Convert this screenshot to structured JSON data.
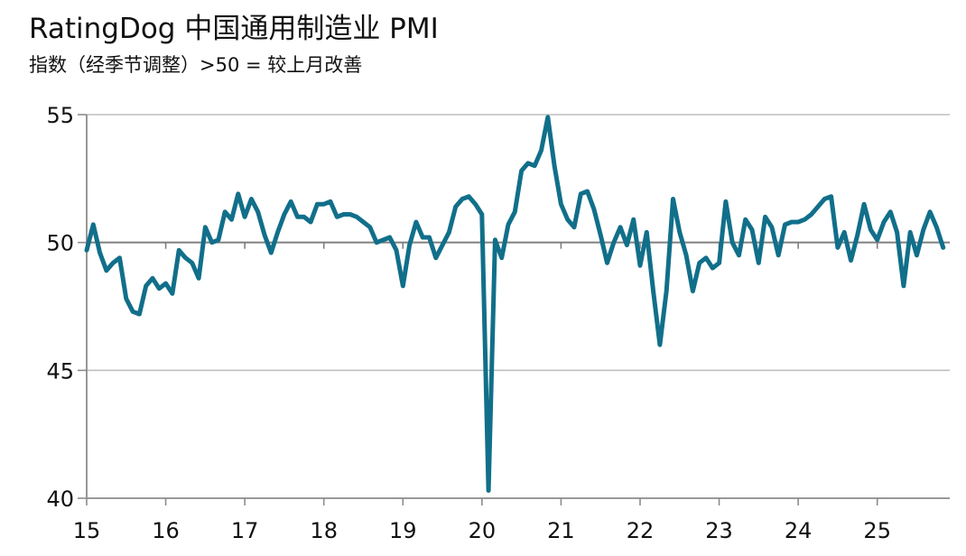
{
  "header": {
    "title": "RatingDog 中国通用制造业 PMI",
    "subtitle": "指数（经季节调整）>50 = 较上月改善"
  },
  "colors": {
    "line": "#116f8a",
    "axis": "#8c8c8c",
    "grid": "#bfbfbf",
    "reference": "#7f7f7f"
  },
  "chart_data": {
    "type": "line",
    "title": "RatingDog 中国通用制造业 PMI",
    "subtitle": "指数（经季节调整）>50 = 较上月改善",
    "xlabel": "",
    "ylabel": "",
    "ylim": [
      40,
      55
    ],
    "xlim": [
      2015.0,
      2025.917
    ],
    "yticks": [
      {
        "value": 55,
        "label": "55"
      },
      {
        "value": 50,
        "label": "50"
      },
      {
        "value": 45,
        "label": "45"
      },
      {
        "value": 40,
        "label": "40"
      }
    ],
    "xticks": [
      {
        "value": 2015.0,
        "label": "15"
      },
      {
        "value": 2016.0,
        "label": "16"
      },
      {
        "value": 2017.0,
        "label": "17"
      },
      {
        "value": 2018.0,
        "label": "18"
      },
      {
        "value": 2019.0,
        "label": "19"
      },
      {
        "value": 2020.0,
        "label": "20"
      },
      {
        "value": 2021.0,
        "label": "21"
      },
      {
        "value": 2022.0,
        "label": "22"
      },
      {
        "value": 2023.0,
        "label": "23"
      },
      {
        "value": 2024.0,
        "label": "24"
      },
      {
        "value": 2025.0,
        "label": "25"
      }
    ],
    "reference_line": 50,
    "grid": true,
    "legend": "none",
    "series": [
      {
        "start": "2015-01",
        "frequency": "monthly",
        "values": [
          49.7,
          50.7,
          49.6,
          48.9,
          49.2,
          49.4,
          47.8,
          47.3,
          47.2,
          48.3,
          48.6,
          48.2,
          48.4,
          48.0,
          49.7,
          49.4,
          49.2,
          48.6,
          50.6,
          50.0,
          50.1,
          51.2,
          50.9,
          51.9,
          51.0,
          51.7,
          51.2,
          50.3,
          49.6,
          50.4,
          51.1,
          51.6,
          51.0,
          51.0,
          50.8,
          51.5,
          51.5,
          51.6,
          51.0,
          51.1,
          51.1,
          51.0,
          50.8,
          50.6,
          50.0,
          50.1,
          50.2,
          49.7,
          48.3,
          49.9,
          50.8,
          50.2,
          50.2,
          49.4,
          49.9,
          50.4,
          51.4,
          51.7,
          51.8,
          51.5,
          51.1,
          40.3,
          50.1,
          49.4,
          50.7,
          51.2,
          52.8,
          53.1,
          53.0,
          53.6,
          54.9,
          53.0,
          51.5,
          50.9,
          50.6,
          51.9,
          52.0,
          51.3,
          50.3,
          49.2,
          50.0,
          50.6,
          49.9,
          50.9,
          49.1,
          50.4,
          48.1,
          46.0,
          48.1,
          51.7,
          50.4,
          49.5,
          48.1,
          49.2,
          49.4,
          49.0,
          49.2,
          51.6,
          50.0,
          49.5,
          50.9,
          50.5,
          49.2,
          51.0,
          50.6,
          49.5,
          50.7,
          50.8,
          50.8,
          50.9,
          51.1,
          51.4,
          51.7,
          51.8,
          49.8,
          50.4,
          49.3,
          50.3,
          51.5,
          50.5,
          50.1,
          50.8,
          51.2,
          50.4,
          48.3,
          50.4,
          49.5,
          50.5,
          51.2,
          50.6,
          49.8
        ]
      }
    ]
  }
}
